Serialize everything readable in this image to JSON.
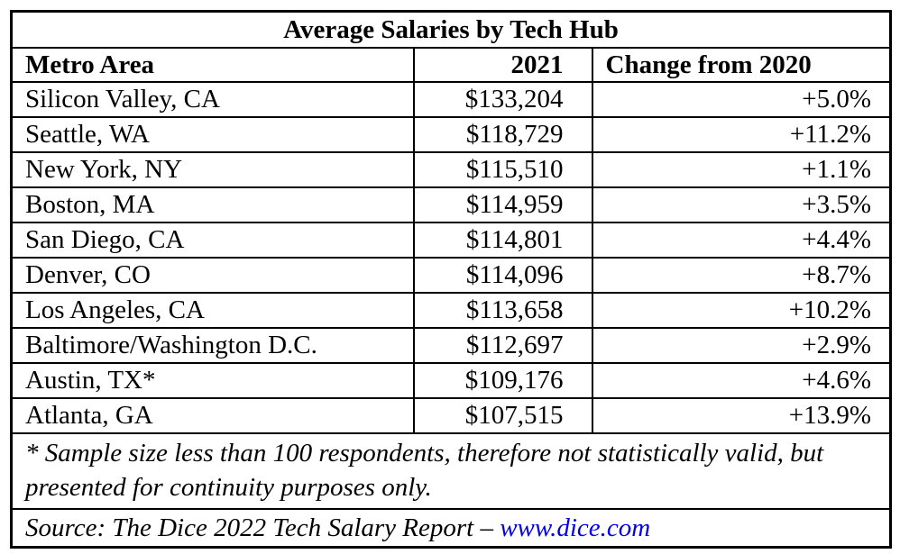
{
  "table": {
    "title": "Average Salaries by Tech Hub",
    "columns": {
      "metro": "Metro Area",
      "year": "2021",
      "change": "Change from 2020"
    },
    "rows": [
      {
        "metro": "Silicon Valley, CA",
        "salary": "$133,204",
        "change": "+5.0%"
      },
      {
        "metro": "Seattle, WA",
        "salary": "$118,729",
        "change": "+11.2%"
      },
      {
        "metro": "New York, NY",
        "salary": "$115,510",
        "change": "+1.1%"
      },
      {
        "metro": "Boston, MA",
        "salary": "$114,959",
        "change": "+3.5%"
      },
      {
        "metro": "San Diego, CA",
        "salary": "$114,801",
        "change": "+4.4%"
      },
      {
        "metro": "Denver, CO",
        "salary": "$114,096",
        "change": "+8.7%"
      },
      {
        "metro": "Los Angeles, CA",
        "salary": "$113,658",
        "change": "+10.2%"
      },
      {
        "metro": "Baltimore/Washington D.C.",
        "salary": "$112,697",
        "change": "+2.9%"
      },
      {
        "metro": "Austin, TX*",
        "salary": "$109,176",
        "change": "+4.6%"
      },
      {
        "metro": "Atlanta, GA",
        "salary": "$107,515",
        "change": "+13.9%"
      }
    ],
    "footnote": "* Sample size less than 100 respondents, therefore not statistically valid, but presented for continuity purposes only.",
    "source_prefix": "Source: The Dice 2022 Tech Salary Report – ",
    "source_link": "www.dice.com"
  },
  "colors": {
    "link_blue": "#0000EE",
    "border_black": "#000000",
    "background": "#FFFFFF"
  }
}
